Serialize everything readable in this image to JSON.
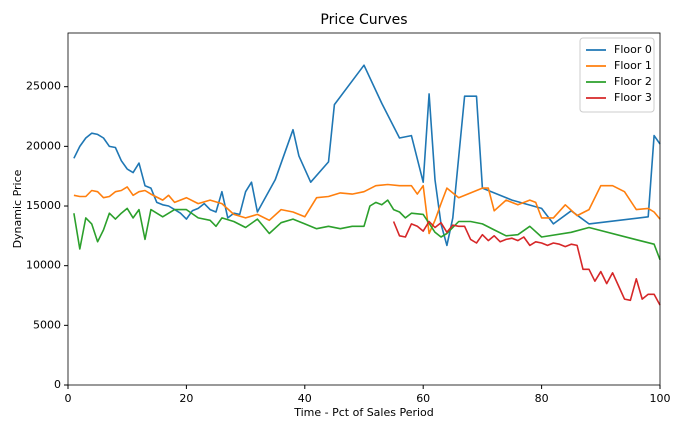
{
  "chart_data": {
    "type": "line",
    "title": "Price Curves",
    "x_label": "Time - Pct of Sales Period",
    "y_label": "Dynamic Price",
    "xlim": [
      0,
      100
    ],
    "ylim": [
      0,
      29500
    ],
    "xticks": [
      0,
      20,
      40,
      60,
      80,
      100
    ],
    "yticks": [
      0,
      5000,
      10000,
      15000,
      20000,
      25000
    ],
    "legend": "upper right",
    "series": [
      {
        "name": "Floor 0",
        "color": "#1f77b4",
        "x": [
          1,
          2,
          3,
          4,
          5,
          6,
          7,
          8,
          9,
          10,
          11,
          12,
          13,
          14,
          15,
          16,
          17,
          18,
          19,
          20,
          21,
          22,
          23,
          24,
          25,
          26,
          27,
          28,
          29,
          30,
          31,
          32,
          35,
          38,
          39,
          41,
          44,
          45,
          50,
          53,
          56,
          58,
          60,
          61,
          62,
          63,
          64,
          65,
          67,
          68,
          69,
          70,
          75,
          80,
          82,
          85,
          88,
          98,
          99,
          100
        ],
        "values": [
          19000,
          20000,
          20700,
          21100,
          21000,
          20700,
          20000,
          19900,
          18800,
          18100,
          17800,
          18600,
          16700,
          16500,
          15300,
          15100,
          15000,
          14700,
          14400,
          13900,
          14600,
          14800,
          15200,
          14700,
          14500,
          16200,
          14000,
          14400,
          14300,
          16200,
          17000,
          14500,
          17200,
          21400,
          19200,
          17000,
          18700,
          23500,
          26800,
          23600,
          20700,
          20900,
          17000,
          24400,
          17200,
          13500,
          11700,
          14000,
          24200,
          24200,
          24200,
          16500,
          15500,
          14800,
          13500,
          14600,
          13500,
          14100,
          20900,
          20200
        ]
      },
      {
        "name": "Floor 1",
        "color": "#ff7f0e",
        "x": [
          1,
          2,
          3,
          4,
          5,
          6,
          7,
          8,
          9,
          10,
          11,
          12,
          13,
          14,
          16,
          17,
          18,
          20,
          22,
          24,
          26,
          28,
          30,
          32,
          34,
          36,
          38,
          40,
          42,
          44,
          46,
          48,
          50,
          52,
          54,
          56,
          58,
          59,
          60,
          61,
          62,
          63,
          64,
          66,
          70,
          71,
          72,
          74,
          76,
          78,
          79,
          80,
          82,
          84,
          86,
          88,
          90,
          92,
          94,
          96,
          98,
          99,
          100
        ],
        "values": [
          15900,
          15800,
          15800,
          16300,
          16200,
          15700,
          15800,
          16200,
          16300,
          16600,
          15900,
          16200,
          16300,
          16000,
          15500,
          15900,
          15300,
          15700,
          15200,
          15500,
          15200,
          14300,
          14000,
          14300,
          13800,
          14700,
          14500,
          14100,
          15700,
          15800,
          16100,
          16000,
          16200,
          16700,
          16800,
          16700,
          16700,
          16000,
          16700,
          12700,
          13800,
          15200,
          16500,
          15700,
          16500,
          16500,
          14600,
          15500,
          15100,
          15500,
          15300,
          14000,
          14000,
          15100,
          14200,
          14700,
          16700,
          16700,
          16200,
          14700,
          14800,
          14500,
          13900
        ]
      },
      {
        "name": "Floor 2",
        "color": "#2ca02c",
        "x": [
          1,
          2,
          3,
          4,
          5,
          6,
          7,
          8,
          9,
          10,
          11,
          12,
          13,
          14,
          16,
          18,
          20,
          22,
          24,
          25,
          26,
          28,
          30,
          32,
          34,
          36,
          38,
          40,
          42,
          44,
          46,
          48,
          50,
          51,
          52,
          53,
          54,
          55,
          56,
          57,
          58,
          60,
          62,
          63,
          64,
          66,
          68,
          70,
          72,
          74,
          76,
          78,
          80,
          85,
          88,
          95,
          99,
          100
        ],
        "values": [
          14400,
          11400,
          14000,
          13500,
          12000,
          13000,
          14400,
          13900,
          14400,
          14800,
          14000,
          14700,
          12200,
          14700,
          14100,
          14700,
          14700,
          14000,
          13800,
          13300,
          14000,
          13700,
          13200,
          13900,
          12700,
          13600,
          13900,
          13500,
          13100,
          13300,
          13100,
          13300,
          13300,
          15000,
          15300,
          15100,
          15500,
          14700,
          14500,
          14000,
          14400,
          14300,
          12800,
          12400,
          12700,
          13700,
          13700,
          13500,
          13000,
          12500,
          12600,
          13300,
          12400,
          12800,
          13200,
          12300,
          11800,
          10500
        ]
      },
      {
        "name": "Floor 3",
        "color": "#d62728",
        "x": [
          55,
          56,
          57,
          58,
          59,
          60,
          61,
          62,
          63,
          64,
          65,
          66,
          67,
          68,
          69,
          70,
          71,
          72,
          73,
          74,
          75,
          76,
          77,
          78,
          79,
          80,
          81,
          82,
          83,
          84,
          85,
          86,
          87,
          88,
          89,
          90,
          91,
          92,
          93,
          94,
          95,
          96,
          97,
          98,
          99,
          100
        ],
        "values": [
          13700,
          12500,
          12400,
          13500,
          13300,
          12900,
          13700,
          13200,
          13600,
          12800,
          13400,
          13300,
          13300,
          12200,
          11900,
          12600,
          12100,
          12500,
          12000,
          12200,
          12300,
          12100,
          12400,
          11700,
          12000,
          11900,
          11700,
          11900,
          11800,
          11600,
          11800,
          11700,
          9700,
          9700,
          8700,
          9500,
          8500,
          9400,
          8300,
          7200,
          7100,
          8900,
          7200,
          7600,
          7600,
          6700
        ]
      }
    ]
  }
}
